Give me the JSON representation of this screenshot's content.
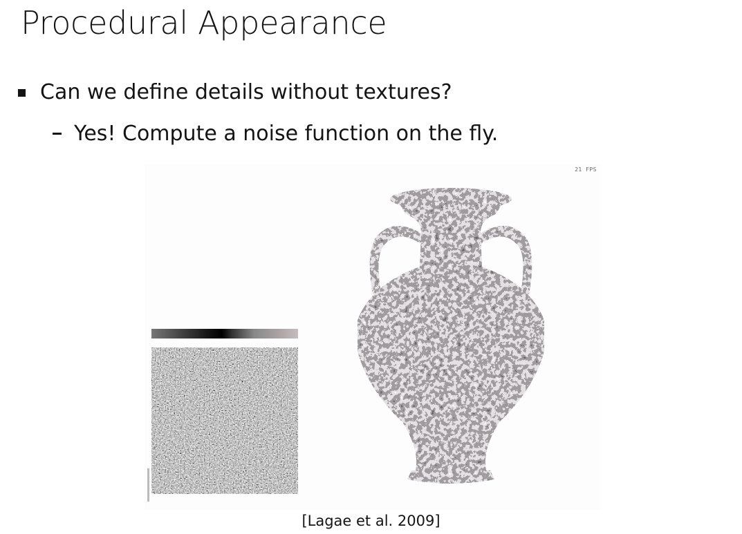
{
  "slide": {
    "title": "Procedural Appearance",
    "bullets": [
      {
        "text": "Can we define details without textures?"
      },
      {
        "text": "Yes! Compute a noise function on the fly."
      }
    ],
    "figure": {
      "fps_label": "21 FPS",
      "citation": "[Lagae et al. 2009]"
    }
  }
}
